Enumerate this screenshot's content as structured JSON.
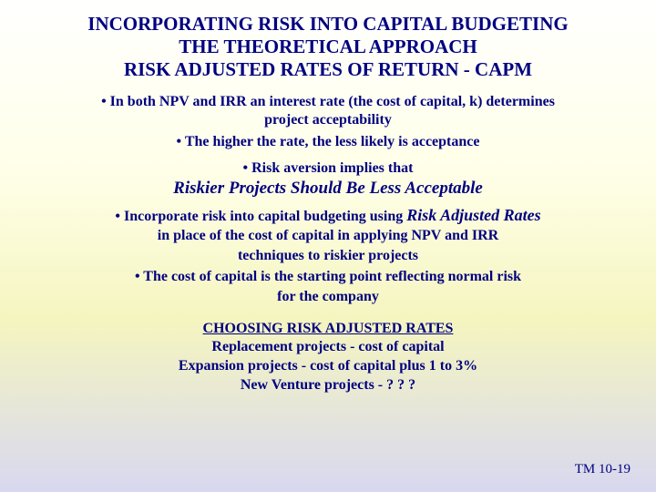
{
  "colors": {
    "text": "#000080",
    "bg_top": "#ffffff",
    "bg_mid1": "#ffffe8",
    "bg_mid2": "#f5f5c0",
    "bg_bottom": "#d8d8f0"
  },
  "title": {
    "line1": "INCORPORATING RISK INTO CAPITAL BUDGETING",
    "line2": "THE THEORETICAL APPROACH",
    "line3": "RISK ADJUSTED RATES OF RETURN - CAPM"
  },
  "bullet1": {
    "line1": "• In both NPV and IRR an interest rate (the cost of capital, k) determines",
    "line2": "project  acceptability"
  },
  "bullet2": "• The higher the rate, the less likely is acceptance",
  "risk_aversion": "• Risk aversion implies that",
  "riskier": "Riskier Projects Should Be Less Acceptable",
  "incorporate": {
    "prefix": "• Incorporate risk into capital budgeting using ",
    "emph": "Risk Adjusted Rates",
    "line2": "in place of the cost of capital in applying NPV and IRR",
    "line3": "techniques to riskier projects"
  },
  "cost_capital": {
    "line1": "• The cost of capital is the starting point reflecting normal  risk",
    "line2": "for the company"
  },
  "choosing": {
    "head": "CHOOSING RISK ADJUSTED RATES",
    "l1": "Replacement projects - cost of capital",
    "l2": "Expansion projects - cost of capital plus 1 to 3%",
    "l3": "New Venture projects - ? ? ?"
  },
  "footer": "TM 10-19"
}
